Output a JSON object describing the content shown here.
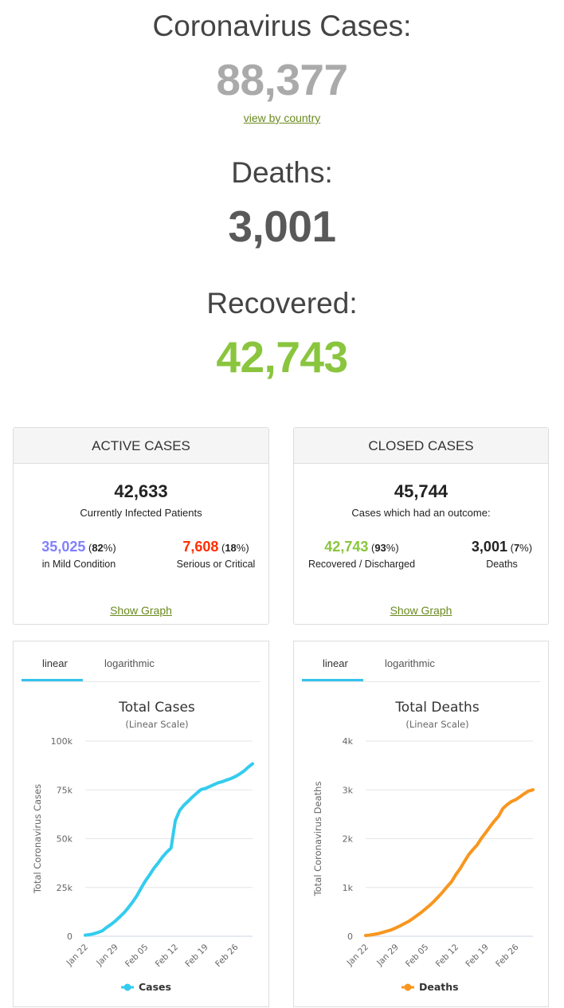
{
  "summary": {
    "cases_label": "Coronavirus Cases:",
    "cases_value": "88,377",
    "view_by_country": "view by country",
    "deaths_label": "Deaths:",
    "deaths_value": "3,001",
    "recovered_label": "Recovered:",
    "recovered_value": "42,743"
  },
  "active": {
    "title": "ACTIVE CASES",
    "total": "42,633",
    "total_label": "Currently Infected Patients",
    "mild_value": "35,025",
    "mild_pct": "82",
    "mild_label": "in Mild Condition",
    "serious_value": "7,608",
    "serious_pct": "18",
    "serious_label": "Serious or Critical",
    "show_graph": "Show Graph"
  },
  "closed": {
    "title": "CLOSED CASES",
    "total": "45,744",
    "total_label": "Cases which had an outcome:",
    "recovered_value": "42,743",
    "recovered_pct": "93",
    "recovered_label": "Recovered / Discharged",
    "deaths_value": "3,001",
    "deaths_pct": "7",
    "deaths_label": "Deaths",
    "show_graph": "Show Graph"
  },
  "tabs": {
    "linear": "linear",
    "logarithmic": "logarithmic"
  },
  "colors": {
    "mild": "#8080ff",
    "serious": "#ff2f00",
    "recovered": "#8ac53e",
    "cases_line": "#33ccee",
    "deaths_line": "#f8961e",
    "muted_number": "#aaaaaa",
    "deaths_number": "#595959"
  },
  "chart_data": [
    {
      "type": "line",
      "title": "Total Cases",
      "subtitle": "(Linear Scale)",
      "ylabel": "Total Coronavirus Cases",
      "yticks": [
        "0",
        "25k",
        "50k",
        "75k",
        "100k"
      ],
      "ylim": [
        0,
        100000
      ],
      "xticks": [
        "Jan 22",
        "Jan 29",
        "Feb 05",
        "Feb 12",
        "Feb 19",
        "Feb 26"
      ],
      "series": [
        {
          "name": "Cases",
          "x": [
            0,
            1,
            2,
            3,
            4,
            5,
            6,
            7,
            8,
            9,
            10,
            11,
            12,
            13,
            14,
            15,
            16,
            17,
            18,
            19,
            20,
            21,
            22,
            23,
            24,
            25,
            26,
            27,
            28,
            29,
            30,
            31,
            32,
            33,
            34,
            35,
            36,
            37,
            38,
            39
          ],
          "values": [
            580,
            845,
            1317,
            2015,
            2800,
            4581,
            6058,
            7813,
            9821,
            11948,
            14551,
            17389,
            20628,
            24553,
            28276,
            31439,
            34876,
            37552,
            40553,
            43099,
            45170,
            59283,
            64437,
            67100,
            69197,
            71329,
            73332,
            75184,
            75700,
            76677,
            77673,
            78651,
            79205,
            80087,
            80828,
            81820,
            83112,
            84615,
            86604,
            88377
          ]
        }
      ]
    },
    {
      "type": "line",
      "title": "Total Deaths",
      "subtitle": "(Linear Scale)",
      "ylabel": "Total Coronavirus Deaths",
      "yticks": [
        "0",
        "1k",
        "2k",
        "3k",
        "4k"
      ],
      "ylim": [
        0,
        4000
      ],
      "xticks": [
        "Jan 22",
        "Jan 29",
        "Feb 05",
        "Feb 12",
        "Feb 19",
        "Feb 26"
      ],
      "series": [
        {
          "name": "Deaths",
          "x": [
            0,
            1,
            2,
            3,
            4,
            5,
            6,
            7,
            8,
            9,
            10,
            11,
            12,
            13,
            14,
            15,
            16,
            17,
            18,
            19,
            20,
            21,
            22,
            23,
            24,
            25,
            26,
            27,
            28,
            29,
            30,
            31,
            32,
            33,
            34,
            35,
            36,
            37,
            38,
            39
          ],
          "values": [
            17,
            25,
            41,
            56,
            80,
            106,
            132,
            170,
            213,
            259,
            304,
            362,
            426,
            492,
            565,
            638,
            724,
            813,
            910,
            1018,
            1115,
            1261,
            1383,
            1526,
            1669,
            1775,
            1873,
            2009,
            2126,
            2247,
            2360,
            2460,
            2618,
            2699,
            2763,
            2800,
            2858,
            2923,
            2977,
            3001
          ]
        }
      ]
    }
  ]
}
